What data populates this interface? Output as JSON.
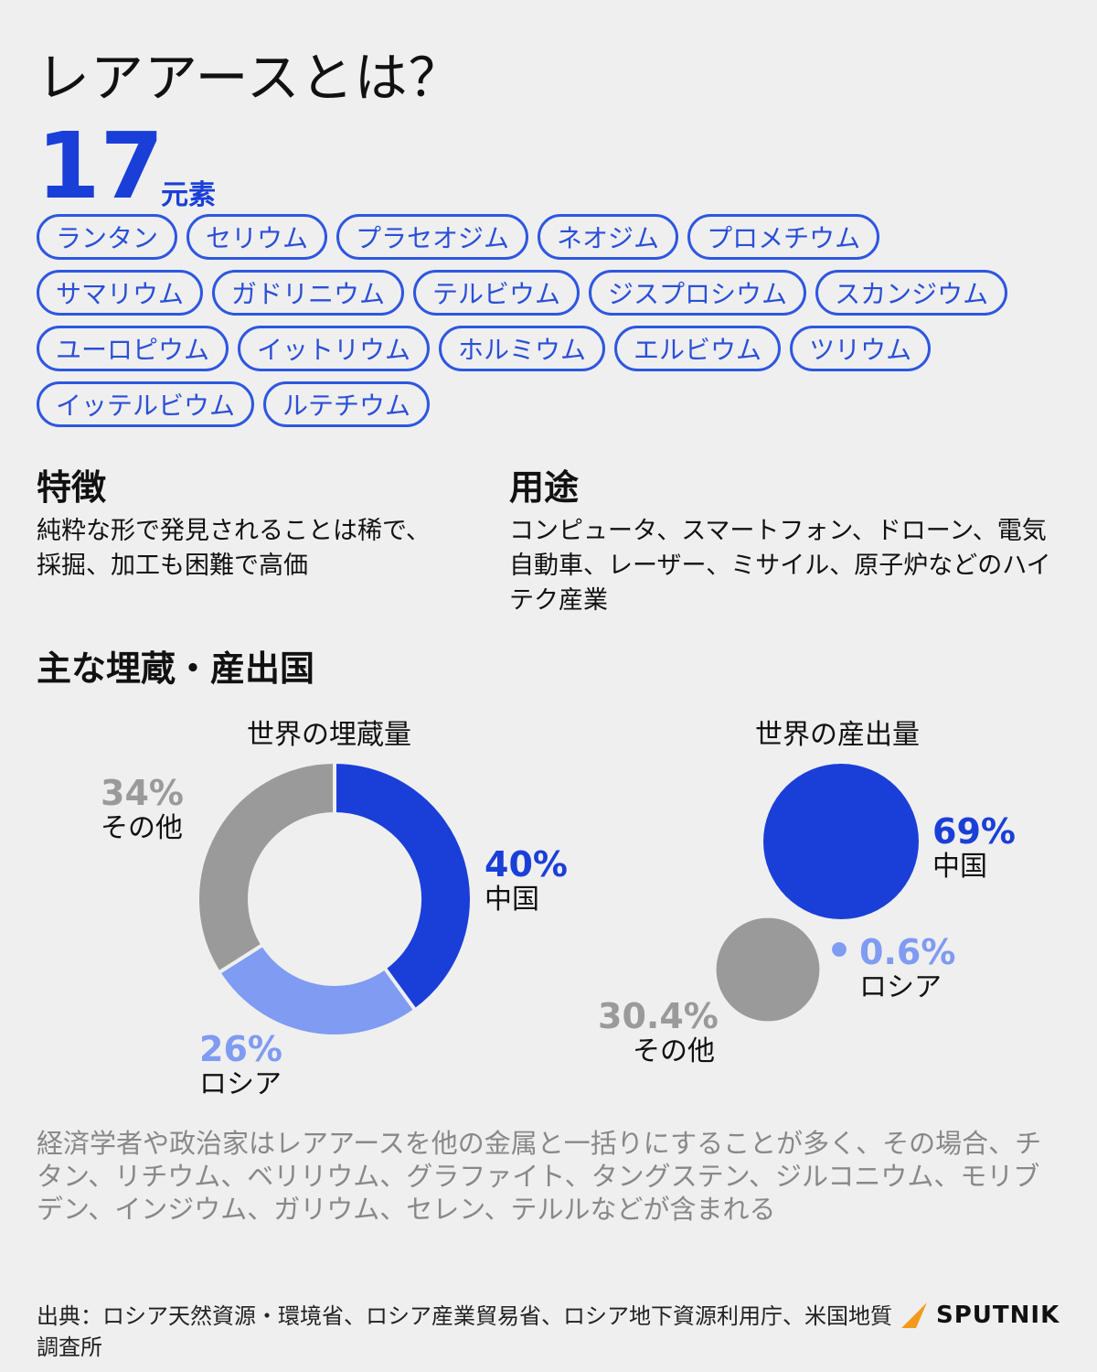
{
  "title": "レアアースとは？",
  "element_count": "17",
  "element_unit": "元素",
  "elements": [
    [
      "ランタン",
      "セリウム",
      "プラセオジム",
      "ネオジム",
      "プロメチウム"
    ],
    [
      "サマリウム",
      "ガドリニウム",
      "テルビウム",
      "ジスプロシウム",
      "スカンジウム"
    ],
    [
      "ユーロピウム",
      "イットリウム",
      "ホルミウム",
      "エルビウム",
      "ツリウム"
    ],
    [
      "イッテルビウム",
      "ルテチウム"
    ]
  ],
  "features": {
    "heading": "特徴",
    "text": "純粋な形で発見されることは稀で、採掘、加工も困難で高価"
  },
  "uses": {
    "heading": "用途",
    "text": "コンピュータ、スマートフォン、ドローン、電気自動車、レーザー、ミサイル、原子炉などのハイテク産業"
  },
  "countries_heading": "主な埋蔵・産出国",
  "colors": {
    "china": "#1a3fd8",
    "russia": "#7f9bf2",
    "other": "#9a9a9a",
    "pill_border": "#2e57e0",
    "brand_orange": "#f39a1c"
  },
  "chart_data": [
    {
      "type": "pie",
      "title": "世界の埋蔵量",
      "categories": [
        "中国",
        "ロシア",
        "その他"
      ],
      "values": [
        40,
        26,
        34
      ],
      "labels": [
        "40%",
        "26%",
        "34%"
      ]
    },
    {
      "type": "bubble",
      "title": "世界の産出量",
      "categories": [
        "中国",
        "ロシア",
        "その他"
      ],
      "values": [
        69,
        0.6,
        30.4
      ],
      "labels": [
        "69%",
        "0.6%",
        "30.4%"
      ]
    }
  ],
  "footnote": "経済学者や政治家はレアアースを他の金属と一括りにすることが多く、その場合、チタン、リチウム、ベリリウム、グラファイト、タングステン、ジルコニウム、モリブデン、インジウム、ガリウム、セレン、テルルなどが含まれる",
  "source": "出典：ロシア天然資源・環境省、ロシア産業貿易省、ロシア地下資源利用庁、米国地質調査所",
  "brand": "SPUTNIK"
}
